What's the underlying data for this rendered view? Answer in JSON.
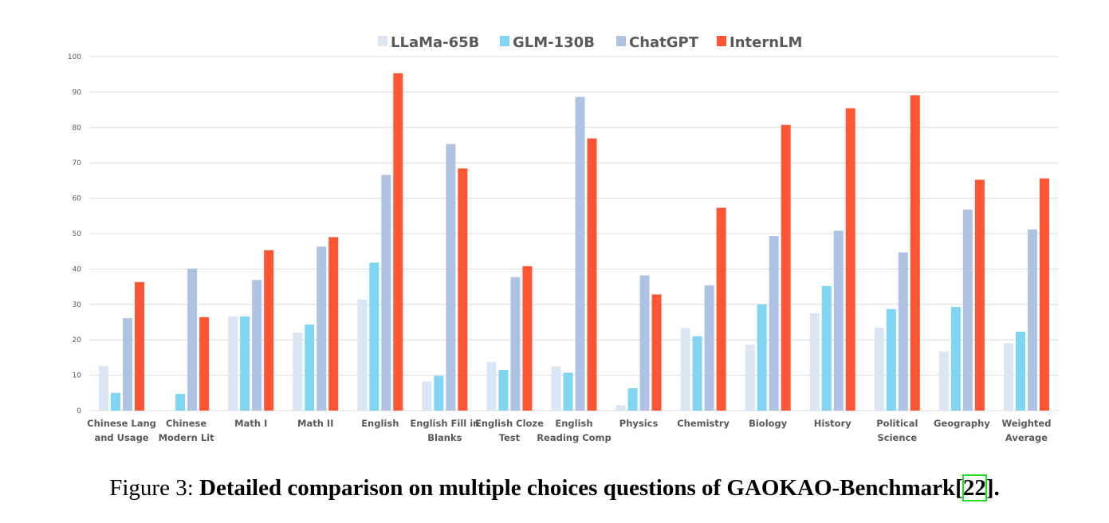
{
  "chart_data": {
    "type": "bar",
    "title": "",
    "xlabel": "",
    "ylabel": "",
    "ylim": [
      0,
      100
    ],
    "yticks": [
      0,
      10,
      20,
      30,
      40,
      50,
      60,
      70,
      80,
      90,
      100
    ],
    "grid": true,
    "legend_position": "top-center",
    "categories": [
      [
        "Chinese Lang",
        "and Usage"
      ],
      [
        "Chinese",
        "Modern Lit"
      ],
      [
        "Math I"
      ],
      [
        "Math II"
      ],
      [
        "English"
      ],
      [
        "English Fill in",
        "Blanks"
      ],
      [
        "English Cloze",
        "Test"
      ],
      [
        "English",
        "Reading Comp"
      ],
      [
        "Physics"
      ],
      [
        "Chemistry"
      ],
      [
        "Biology"
      ],
      [
        "History"
      ],
      [
        "Political",
        "Science"
      ],
      [
        "Geography"
      ],
      [
        "Weighted",
        "Average"
      ]
    ],
    "series": [
      {
        "name": "LLaMa-65B",
        "color": "#dae6f3",
        "values": [
          12.6,
          0,
          26.6,
          22.0,
          31.4,
          8.2,
          13.7,
          12.5,
          1.5,
          23.3,
          18.6,
          27.5,
          23.4,
          16.7,
          19.0
        ]
      },
      {
        "name": "GLM-130B",
        "color": "#7fd5f2",
        "values": [
          5.0,
          4.7,
          26.6,
          24.3,
          41.8,
          9.8,
          11.5,
          10.7,
          6.3,
          21.0,
          30.0,
          35.2,
          28.7,
          29.3,
          22.3
        ]
      },
      {
        "name": "ChatGPT",
        "color": "#aec2e3",
        "values": [
          26.1,
          40.1,
          36.9,
          46.3,
          66.6,
          75.3,
          37.7,
          88.6,
          38.2,
          35.4,
          49.3,
          50.8,
          44.7,
          56.8,
          51.2
        ]
      },
      {
        "name": "InternLM",
        "color": "#fe5535",
        "values": [
          36.3,
          26.4,
          45.3,
          49.0,
          95.3,
          68.4,
          40.8,
          76.9,
          32.8,
          57.3,
          80.7,
          85.4,
          89.1,
          65.2,
          65.6
        ]
      }
    ]
  },
  "caption": {
    "prefix": "Figure 3: ",
    "title": "Detailed comparison on multiple choices questions of GAOKAO-Benchmark[",
    "ref": "22",
    "suffix": "]."
  }
}
